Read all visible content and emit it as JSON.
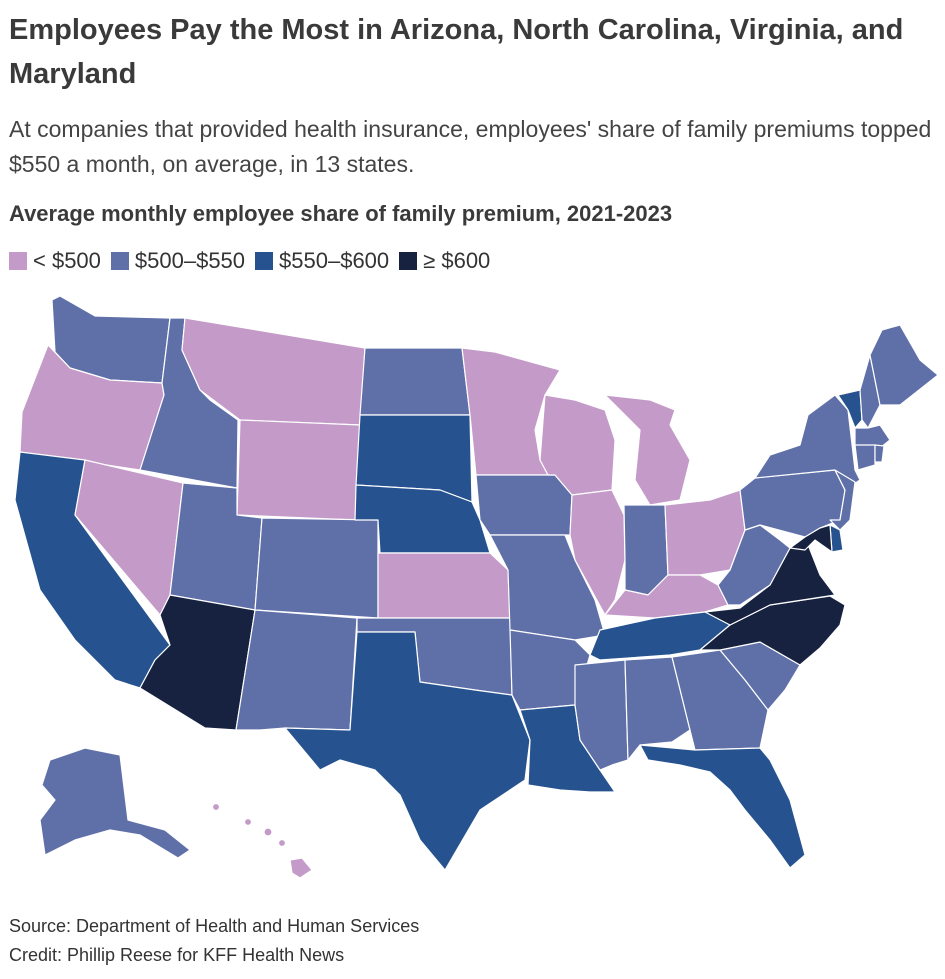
{
  "title": "Employees Pay the Most in Arizona, North Carolina, Virginia, and Maryland",
  "subtitle": "At companies that provided health insurance, employees' share of family premiums topped $550 a month, on average, in 13 states.",
  "legend": {
    "title": "Average monthly employee share of family premium, 2021-2023",
    "items": [
      {
        "label": "< $500",
        "color": "#c49ac9"
      },
      {
        "label": "$500–$550",
        "color": "#5f6fa8"
      },
      {
        "label": "$550–$600",
        "color": "#26538f"
      },
      {
        "label": "≥ $600",
        "color": "#16223f"
      }
    ]
  },
  "source": "Source: Department of Health and Human Services",
  "credit": "Credit: Phillip Reese for KFF Health News",
  "states": {
    "WA": "$500–$550",
    "OR": "< $500",
    "CA": "$550–$600",
    "NV": "< $500",
    "ID": "$500–$550",
    "MT": "< $500",
    "WY": "< $500",
    "UT": "$500–$550",
    "AZ": "≥ $600",
    "CO": "$500–$550",
    "NM": "$500–$550",
    "ND": "$500–$550",
    "SD": "$550–$600",
    "NE": "$550–$600",
    "KS": "< $500",
    "OK": "$500–$550",
    "TX": "$550–$600",
    "MN": "< $500",
    "IA": "$500–$550",
    "MO": "$500–$550",
    "AR": "$500–$550",
    "LA": "$550–$600",
    "WI": "< $500",
    "IL": "< $500",
    "MI": "< $500",
    "IN": "$500–$550",
    "OH": "< $500",
    "KY": "< $500",
    "TN": "$550–$600",
    "MS": "$500–$550",
    "AL": "$500–$550",
    "GA": "$500–$550",
    "FL": "$550–$600",
    "SC": "$500–$550",
    "NC": "≥ $600",
    "VA": "≥ $600",
    "WV": "$500–$550",
    "PA": "$500–$550",
    "NY": "$500–$550",
    "VT": "$550–$600",
    "NH": "$500–$550",
    "ME": "$500–$550",
    "MA": "$500–$550",
    "CT": "$500–$550",
    "RI": "$500–$550",
    "NJ": "$500–$550",
    "DE": "$550–$600",
    "MD": "≥ $600",
    "AK": "$500–$550",
    "HI": "< $500"
  }
}
